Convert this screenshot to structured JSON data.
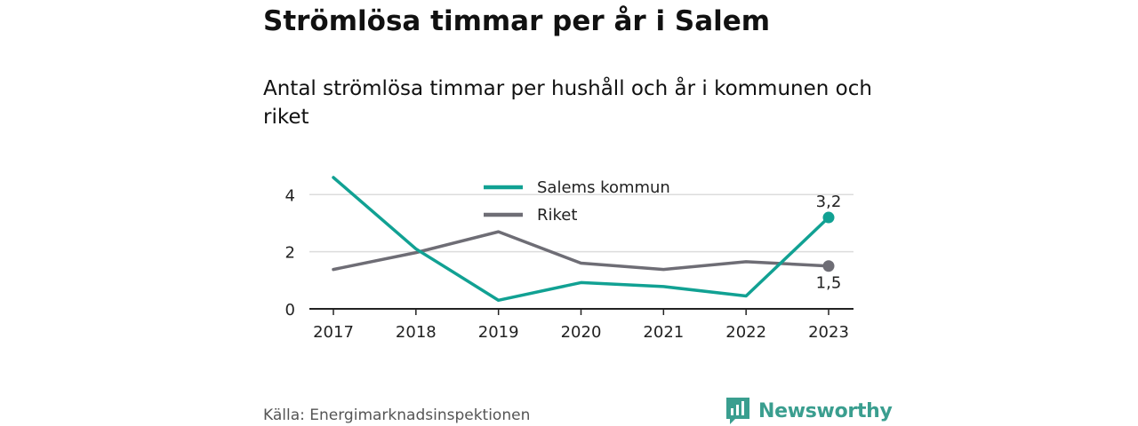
{
  "title": "Strömlösa timmar per år i Salem",
  "subtitle": "Antal strömlösa timmar per hushåll och år i kommunen och riket",
  "source": "Källa: Energimarknadsinspektionen",
  "brand": {
    "name": "Newsworthy",
    "color": "#3a9e8f",
    "icon": "bar-chart-icon"
  },
  "chart_data": {
    "type": "line",
    "x": [
      "2017",
      "2018",
      "2019",
      "2020",
      "2021",
      "2022",
      "2023"
    ],
    "series": [
      {
        "name": "Salems kommun",
        "color": "#11a193",
        "values": [
          4.6,
          2.1,
          0.3,
          0.92,
          0.78,
          0.45,
          3.2
        ],
        "end_label": "3,2"
      },
      {
        "name": "Riket",
        "color": "#6e6d75",
        "values": [
          1.38,
          1.97,
          2.7,
          1.6,
          1.38,
          1.65,
          1.5
        ],
        "end_label": "1,5"
      }
    ],
    "ylim": [
      0,
      4.6
    ],
    "yticks": [
      0,
      2,
      4
    ],
    "ytick_labels": [
      "0",
      "2",
      "4"
    ],
    "grid": true,
    "legend": "top-center"
  }
}
